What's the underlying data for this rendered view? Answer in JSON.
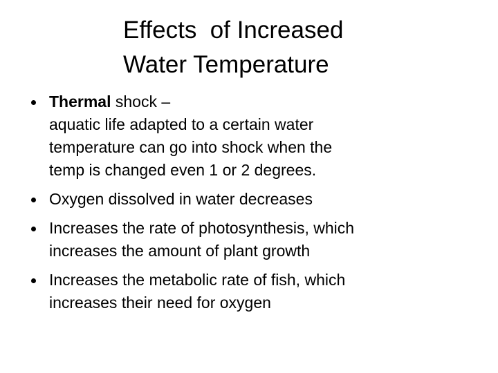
{
  "title": {
    "lines": [
      "Effects  of Increased",
      "Water Temperature"
    ]
  },
  "bullets": [
    {
      "bold": "Thermal",
      "lines": [
        "shock –",
        "aquatic life adapted to a certain water",
        "temperature can go into shock when the",
        "temp is changed even 1 or 2 degrees."
      ]
    },
    {
      "lines": [
        "Oxygen dissolved in water decreases"
      ]
    },
    {
      "lines": [
        "Increases the rate of photosynthesis, which",
        "increases the amount of plant growth"
      ]
    },
    {
      "lines": [
        "Increases the metabolic rate of fish, which",
        "increases their need for oxygen"
      ]
    }
  ]
}
